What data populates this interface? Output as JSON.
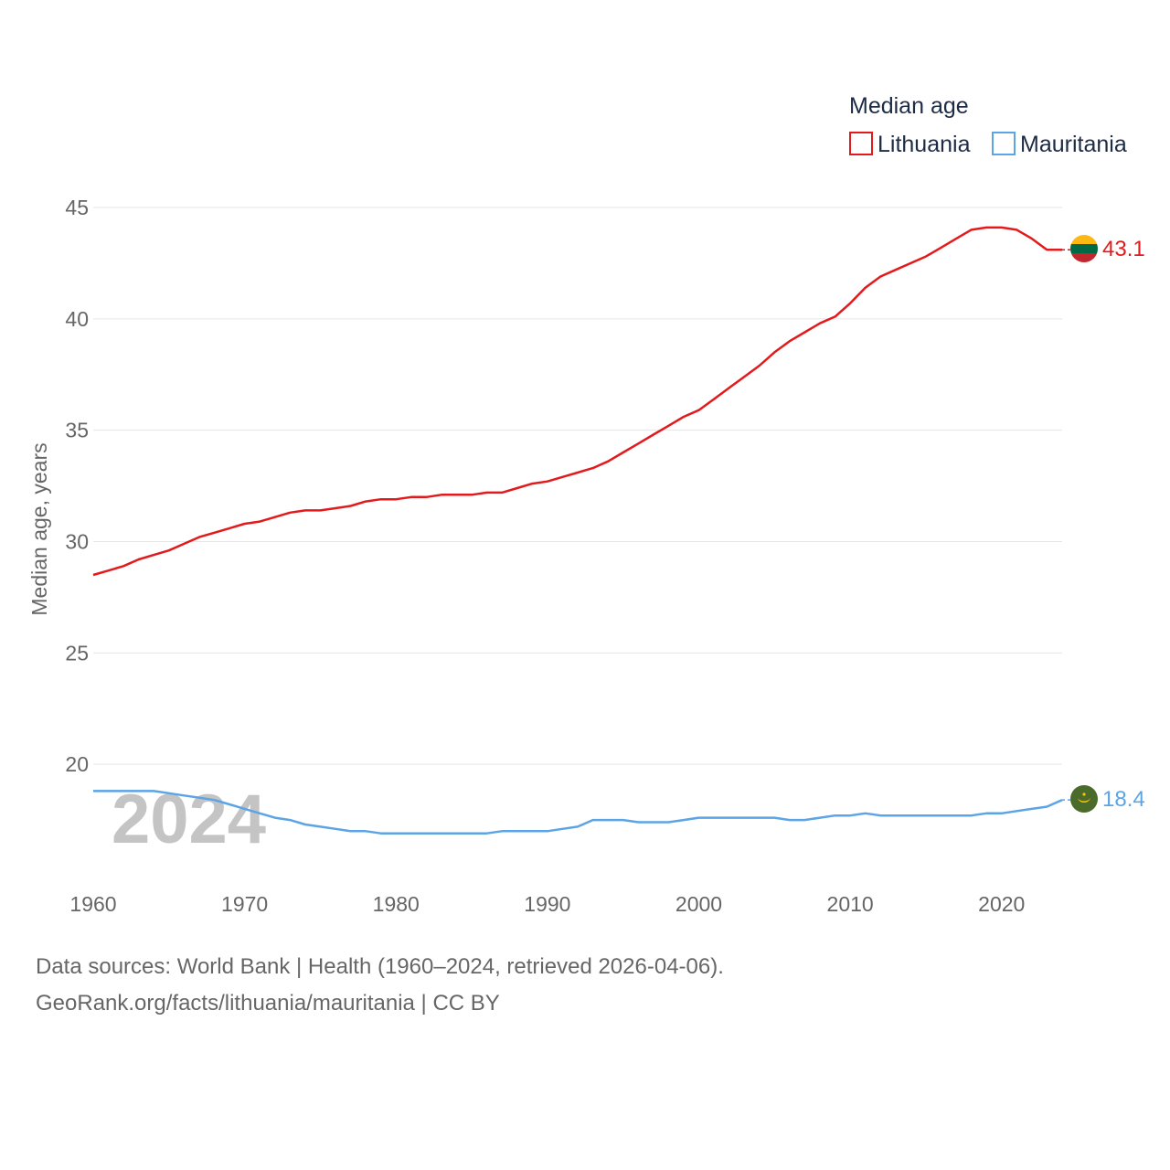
{
  "chart_data": {
    "type": "line",
    "title": "Median age",
    "ylabel": "Median age, years",
    "xlabel": "",
    "ylim": [
      15,
      45
    ],
    "y_ticks": [
      20,
      25,
      30,
      35,
      40,
      45
    ],
    "xlim": [
      1960,
      2024
    ],
    "x_ticks": [
      1960,
      1970,
      1980,
      1990,
      2000,
      2010,
      2020
    ],
    "grid": true,
    "legend_position": "top-right",
    "year_badge": "2024",
    "x": [
      1960,
      1961,
      1962,
      1963,
      1964,
      1965,
      1966,
      1967,
      1968,
      1969,
      1970,
      1971,
      1972,
      1973,
      1974,
      1975,
      1976,
      1977,
      1978,
      1979,
      1980,
      1981,
      1982,
      1983,
      1984,
      1985,
      1986,
      1987,
      1988,
      1989,
      1990,
      1991,
      1992,
      1993,
      1994,
      1995,
      1996,
      1997,
      1998,
      1999,
      2000,
      2001,
      2002,
      2003,
      2004,
      2005,
      2006,
      2007,
      2008,
      2009,
      2010,
      2011,
      2012,
      2013,
      2014,
      2015,
      2016,
      2017,
      2018,
      2019,
      2020,
      2021,
      2022,
      2023,
      2024
    ],
    "series": [
      {
        "name": "Lithuania",
        "color": "#e31a1c",
        "end_label": "43.1",
        "values": [
          28.5,
          28.7,
          28.9,
          29.2,
          29.4,
          29.6,
          29.9,
          30.2,
          30.4,
          30.6,
          30.8,
          30.9,
          31.1,
          31.3,
          31.4,
          31.4,
          31.5,
          31.6,
          31.8,
          31.9,
          31.9,
          32.0,
          32.0,
          32.1,
          32.1,
          32.1,
          32.2,
          32.2,
          32.4,
          32.6,
          32.7,
          32.9,
          33.1,
          33.3,
          33.6,
          34.0,
          34.4,
          34.8,
          35.2,
          35.6,
          35.9,
          36.4,
          36.9,
          37.4,
          37.9,
          38.5,
          39.0,
          39.4,
          39.8,
          40.1,
          40.7,
          41.4,
          41.9,
          42.2,
          42.5,
          42.8,
          43.2,
          43.6,
          44.0,
          44.1,
          44.1,
          44.0,
          43.6,
          43.1,
          43.1
        ]
      },
      {
        "name": "Mauritania",
        "color": "#5ba4e6",
        "end_label": "18.4",
        "values": [
          18.8,
          18.8,
          18.8,
          18.8,
          18.8,
          18.7,
          18.6,
          18.5,
          18.4,
          18.2,
          18.0,
          17.8,
          17.6,
          17.5,
          17.3,
          17.2,
          17.1,
          17.0,
          17.0,
          16.9,
          16.9,
          16.9,
          16.9,
          16.9,
          16.9,
          16.9,
          16.9,
          17.0,
          17.0,
          17.0,
          17.0,
          17.1,
          17.2,
          17.5,
          17.5,
          17.5,
          17.4,
          17.4,
          17.4,
          17.5,
          17.6,
          17.6,
          17.6,
          17.6,
          17.6,
          17.6,
          17.5,
          17.5,
          17.6,
          17.7,
          17.7,
          17.8,
          17.7,
          17.7,
          17.7,
          17.7,
          17.7,
          17.7,
          17.7,
          17.8,
          17.8,
          17.9,
          18.0,
          18.1,
          18.4
        ]
      }
    ]
  },
  "flags": {
    "lithuania": {
      "colors": [
        "#fdb913",
        "#006a44",
        "#c1272d"
      ],
      "icon": "lithuania-flag-icon"
    },
    "mauritania": {
      "colors": [
        "#006233",
        "#ffc400",
        "#d01c1f"
      ],
      "icon": "mauritania-flag-icon"
    }
  },
  "footer": {
    "line1": "Data sources: World Bank | Health (1960–2024, retrieved 2026-04-06).",
    "line2": "GeoRank.org/facts/lithuania/mauritania | CC BY"
  }
}
